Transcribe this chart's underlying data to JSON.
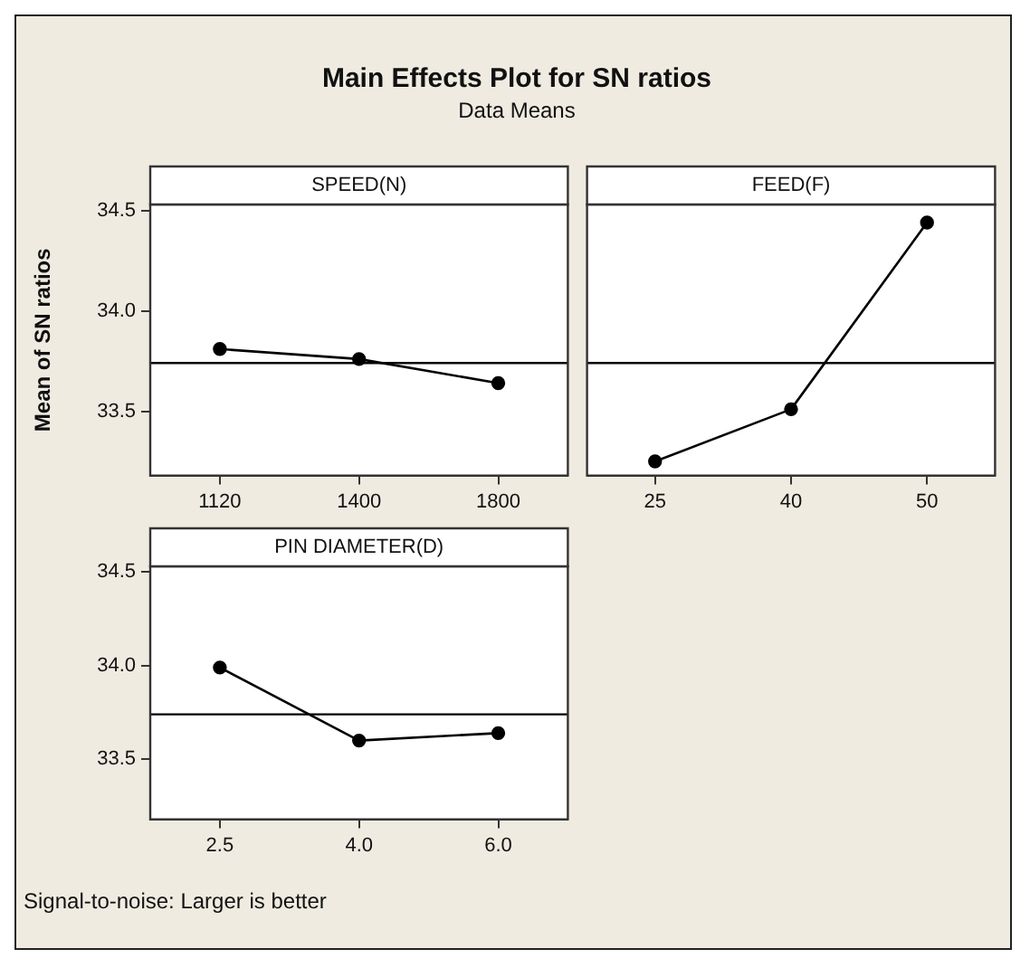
{
  "chart_data": [
    {
      "type": "other",
      "title": "Main Effects Plot for SN ratios",
      "subtitle": "Data Means"
    },
    {
      "type": "line",
      "title": "SPEED(N)",
      "ylabel": "Mean of SN ratios",
      "categories": [
        "1120",
        "1400",
        "1800"
      ],
      "values": [
        33.81,
        33.76,
        33.64
      ],
      "color": "#000000",
      "marker": "circle",
      "ylim": [
        33.18,
        34.53
      ],
      "yticks": [
        {
          "value": 33.5,
          "label": "33.5"
        },
        {
          "value": 34,
          "label": "34.0"
        },
        {
          "value": 34.5,
          "label": "34.5"
        }
      ],
      "ref_lines": [
        {
          "axis": "y",
          "value": 33.74,
          "color": "#000000"
        }
      ]
    },
    {
      "type": "line",
      "title": "FEED(F)",
      "categories": [
        "25",
        "40",
        "50"
      ],
      "values": [
        33.25,
        33.51,
        34.44
      ],
      "color": "#000000",
      "marker": "circle",
      "ylim": [
        33.18,
        34.53
      ],
      "tick_labels": "x",
      "ref_lines": [
        {
          "axis": "y",
          "value": 33.74,
          "color": "#000000"
        }
      ]
    },
    {
      "type": "line",
      "title": "PIN DIAMETER(D)",
      "categories": [
        "2.5",
        "4.0",
        "6.0"
      ],
      "values": [
        33.99,
        33.6,
        33.64
      ],
      "color": "#000000",
      "marker": "circle",
      "ylim": [
        33.18,
        34.53
      ],
      "yticks": [
        {
          "value": 33.5,
          "label": "33.5"
        },
        {
          "value": 34,
          "label": "34.0"
        },
        {
          "value": 34.5,
          "label": "34.5"
        }
      ],
      "ref_lines": [
        {
          "axis": "y",
          "value": 33.74,
          "color": "#000000"
        }
      ],
      "annotations": [
        "Signal-to-noise: Larger is better"
      ]
    }
  ]
}
